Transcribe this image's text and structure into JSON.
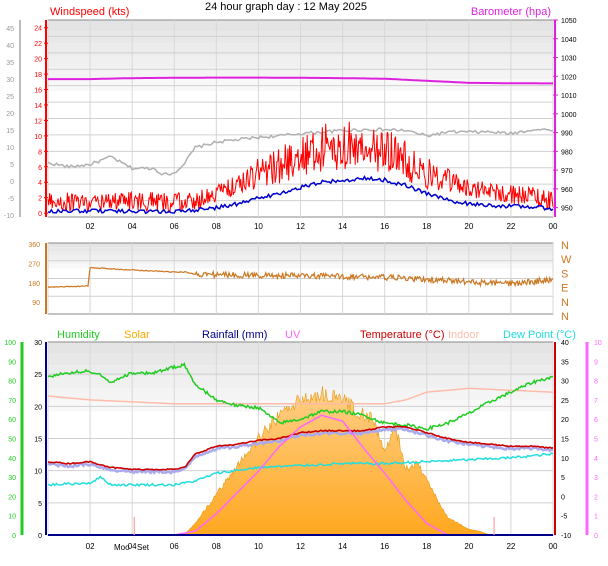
{
  "title": "24 hour graph day : 12 May 2025",
  "x_ticks": [
    "02",
    "04",
    "06",
    "08",
    "10",
    "12",
    "14",
    "16",
    "18",
    "20",
    "22",
    "00"
  ],
  "moon_labels": {
    "rise": "Moo",
    "set": "Set"
  },
  "colors": {
    "windspeed": "#ff0000",
    "barometer": "#dd22dd",
    "avg_wind": "#0000cc",
    "gust_grey": "#b0b0b0",
    "direction": "#cc7722",
    "humidity": "#22cc22",
    "solar": "#ffaa00",
    "rainfall": "#000088",
    "uv": "#ff66ff",
    "temperature": "#cc0000",
    "indoor": "#ffbbaa",
    "dew_point": "#22dddd"
  },
  "chart_data": [
    {
      "type": "line",
      "name": "wind-and-pressure",
      "x_range": [
        0,
        24
      ],
      "left_axis": {
        "label": "Windspeed (kts)",
        "ticks": [
          0,
          2,
          4,
          6,
          8,
          10,
          12,
          14,
          16,
          18,
          20,
          22,
          24
        ],
        "range": [
          -0.5,
          25
        ]
      },
      "outer_left_axis": {
        "ticks": [
          "-10",
          "-5",
          "0",
          "5",
          "10",
          "15",
          "20",
          "25",
          "30",
          "35",
          "40",
          "45"
        ]
      },
      "right_axis": {
        "label": "Barometer (hpa)",
        "ticks": [
          950,
          960,
          970,
          980,
          990,
          1000,
          1010,
          1020,
          1030,
          1040,
          1050
        ],
        "range": [
          945,
          1050
        ]
      },
      "series": [
        {
          "name": "Barometer (hpa)",
          "axis": "right",
          "x": [
            0,
            2,
            4,
            6,
            8,
            10,
            12,
            14,
            16,
            18,
            20,
            22,
            24
          ],
          "values": [
            1018.5,
            1018.5,
            1019.0,
            1019.2,
            1019.3,
            1019.3,
            1019.2,
            1019.0,
            1018.7,
            1017.6,
            1016.5,
            1016.3,
            1016.2
          ]
        },
        {
          "axis": "left",
          "x": [
            0,
            1,
            2,
            2.5,
            3,
            3.5,
            4,
            5,
            5.5,
            6,
            6.5,
            7,
            7.5,
            8,
            9,
            10,
            11,
            12,
            13,
            14,
            15,
            16,
            17,
            18,
            19,
            20,
            21,
            22,
            23,
            24
          ],
          "values": [
            6.5,
            6,
            6.3,
            6.8,
            7.3,
            6.5,
            5.8,
            5.8,
            5,
            5.2,
            6.5,
            8.5,
            8.8,
            9.2,
            9.5,
            9.8,
            10,
            10.3,
            10.5,
            10.7,
            10.8,
            10.8,
            10.7,
            10,
            10.5,
            10.5,
            10.5,
            10.3,
            10.8,
            10.8
          ]
        },
        {
          "axis": "left",
          "x": [
            0,
            2,
            4,
            6,
            7,
            8,
            9,
            10,
            11,
            12,
            13,
            14,
            15,
            16,
            17,
            18,
            19,
            20,
            21,
            22,
            23,
            24
          ],
          "values": [
            0.2,
            0.3,
            0.2,
            0.2,
            0.4,
            0.7,
            1.2,
            2,
            2.5,
            3.3,
            4,
            4.2,
            4.5,
            4.3,
            3.6,
            2.5,
            1.7,
            1.2,
            1,
            0.9,
            0.8,
            0.6
          ]
        },
        {
          "name": "Windspeed (kts)",
          "axis": "left",
          "x": [
            0,
            2,
            4,
            6,
            7,
            8,
            9,
            10,
            11,
            12,
            13,
            14,
            15,
            16,
            17,
            18,
            19,
            20,
            21,
            22,
            23,
            24
          ],
          "values": [
            1.5,
            1.2,
            1.5,
            1.2,
            1.5,
            2.5,
            3.5,
            5,
            6,
            7,
            8,
            8.5,
            8.5,
            7.8,
            6.5,
            5,
            4,
            3.2,
            2.5,
            2.3,
            2,
            1.5
          ]
        }
      ]
    },
    {
      "type": "line",
      "name": "wind-direction",
      "x_range": [
        0,
        24
      ],
      "left_axis": {
        "ticks": [
          90,
          180,
          270,
          360
        ],
        "range": [
          35,
          365
        ]
      },
      "right_axis": {
        "ticks": [
          "N",
          "W",
          "S",
          "E",
          "N"
        ],
        "compass": [
          "N",
          "W",
          "S",
          "E",
          "N",
          "N"
        ]
      },
      "series": [
        {
          "axis": "left",
          "x": [
            0,
            1,
            1.9,
            2,
            3,
            5,
            6,
            6.5,
            7,
            8,
            10,
            12,
            14,
            16,
            18,
            19,
            20,
            22,
            23,
            24
          ],
          "values": [
            160,
            162,
            165,
            250,
            245,
            235,
            230,
            230,
            220,
            218,
            215,
            212,
            210,
            205,
            195,
            190,
            183,
            175,
            185,
            195
          ]
        }
      ]
    },
    {
      "type": "line",
      "name": "temperature-humidity-solar",
      "x_range": [
        0,
        24
      ],
      "outer_left_axis": {
        "ticks": [
          0,
          10,
          20,
          30,
          40,
          50,
          60,
          70,
          80,
          90,
          100
        ]
      },
      "left_axis": {
        "ticks": [
          0,
          5,
          10,
          15,
          20,
          25,
          30
        ],
        "range": [
          0,
          30
        ]
      },
      "right_axis": {
        "ticks": [
          -10,
          -5,
          0,
          5,
          10,
          15,
          20,
          25,
          30,
          35,
          40
        ],
        "range": [
          -10,
          40
        ]
      },
      "outer_right_axis": {
        "ticks": [
          0,
          1,
          2,
          3,
          4,
          5,
          6,
          7,
          8,
          9,
          10
        ]
      },
      "series": [
        {
          "name": "Humidity",
          "axis": "outer_left",
          "x": [
            0,
            1,
            2,
            2.5,
            3,
            4,
            5,
            6,
            6.5,
            7,
            8,
            9,
            10,
            10.5,
            11,
            12,
            13,
            14,
            15,
            16,
            17,
            18,
            19,
            20,
            21,
            22,
            23,
            24
          ],
          "values": [
            82,
            84,
            85,
            83,
            79,
            84,
            84,
            87,
            88,
            78,
            70,
            67,
            66,
            62,
            58,
            60,
            64,
            64,
            62,
            58,
            57,
            55,
            58,
            63,
            69,
            74,
            79,
            82
          ]
        },
        {
          "name": "Solar",
          "axis": "solar",
          "x": [
            0,
            6,
            6.5,
            7,
            8,
            9,
            10,
            11,
            12,
            13,
            14,
            15,
            15.5,
            16,
            16.5,
            17,
            17.5,
            18,
            18.5,
            19,
            20,
            20.5,
            21,
            24
          ],
          "values": [
            0,
            0,
            5,
            60,
            210,
            360,
            500,
            620,
            700,
            730,
            700,
            620,
            590,
            420,
            560,
            340,
            370,
            300,
            180,
            90,
            30,
            20,
            0,
            0
          ]
        },
        {
          "name": "Rainfall (mm)",
          "axis": "left",
          "x": [
            0,
            24
          ],
          "values": [
            0,
            0
          ]
        },
        {
          "name": "UV",
          "axis": "outer_right",
          "x": [
            0,
            6,
            7,
            8,
            9,
            10,
            11,
            12,
            13,
            14,
            15,
            16,
            17,
            18,
            19,
            24
          ],
          "values": [
            0,
            0,
            0.2,
            1.1,
            2.2,
            3.3,
            4.6,
            5.6,
            6.2,
            5.9,
            4.5,
            3.2,
            1.8,
            0.6,
            0,
            0
          ]
        },
        {
          "name": "Temperature (°C)",
          "axis": "right",
          "x": [
            0,
            1,
            2,
            3,
            4,
            5,
            6,
            6.5,
            7,
            8,
            9,
            10,
            11,
            12,
            13,
            14,
            15,
            16,
            17,
            18,
            19,
            20,
            21,
            22,
            23,
            24
          ],
          "values": [
            9,
            8.5,
            9,
            7.5,
            7,
            7,
            7,
            7.5,
            11,
            13,
            13.5,
            14.5,
            15,
            16.5,
            17,
            17,
            17,
            18,
            18,
            16.5,
            15,
            14,
            13.5,
            13,
            13,
            12.5
          ]
        },
        {
          "name": "Indoor",
          "axis": "right",
          "x": [
            0,
            2,
            4,
            6,
            8,
            10,
            12,
            14,
            16,
            17,
            18,
            20,
            22,
            24
          ],
          "values": [
            26,
            25,
            24.5,
            24,
            24,
            24,
            24,
            24,
            24,
            25,
            27,
            28,
            27.5,
            27
          ]
        },
        {
          "name": "Dew Point (°C)",
          "axis": "right",
          "x": [
            0,
            2,
            2.5,
            3,
            4,
            6,
            7,
            8,
            10,
            12,
            14,
            16,
            18,
            20,
            22,
            24
          ],
          "values": [
            3,
            3.5,
            5,
            3,
            3,
            3,
            4,
            6,
            7.5,
            8,
            8.5,
            8.5,
            9,
            9.5,
            10,
            11
          ]
        }
      ]
    }
  ]
}
